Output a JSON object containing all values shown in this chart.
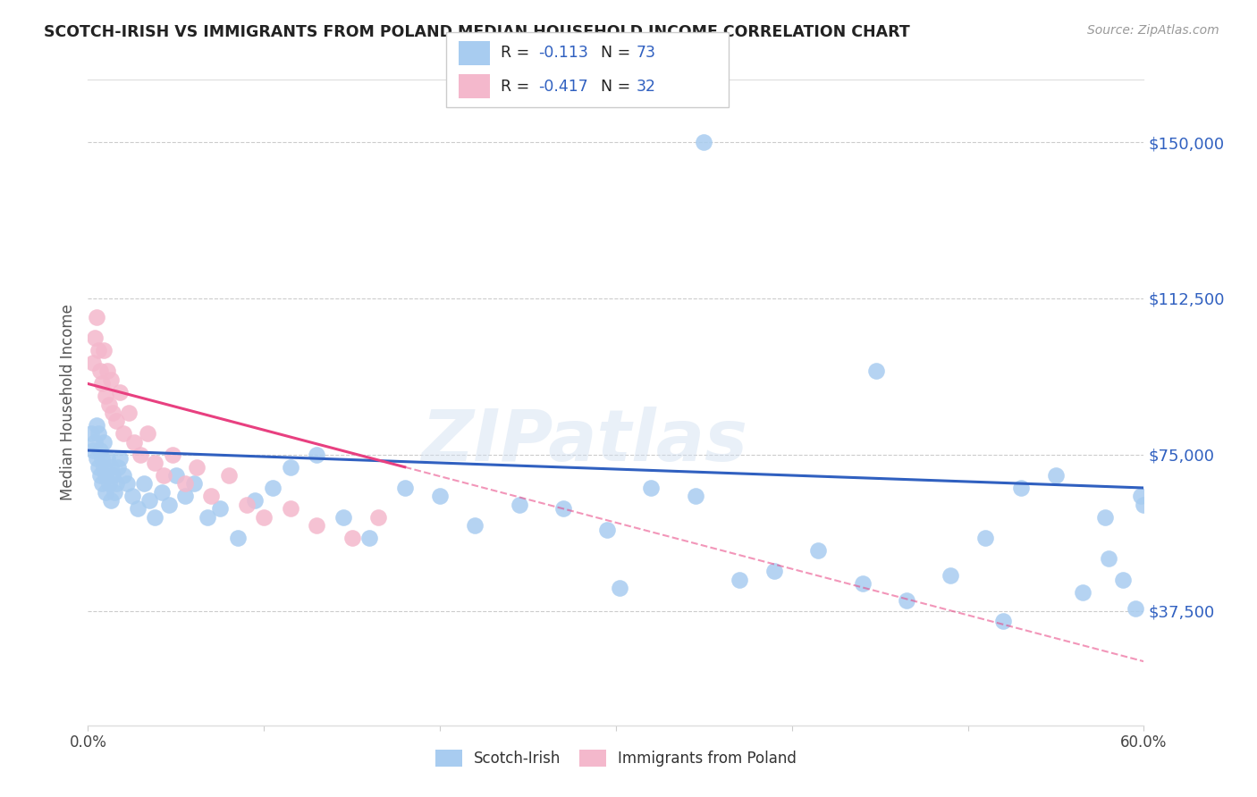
{
  "title": "SCOTCH-IRISH VS IMMIGRANTS FROM POLAND MEDIAN HOUSEHOLD INCOME CORRELATION CHART",
  "source": "Source: ZipAtlas.com",
  "ylabel": "Median Household Income",
  "yticks": [
    37500,
    75000,
    112500,
    150000
  ],
  "ytick_labels": [
    "$37,500",
    "$75,000",
    "$112,500",
    "$150,000"
  ],
  "xmin": 0.0,
  "xmax": 0.6,
  "ymin": 10000,
  "ymax": 165000,
  "color_blue": "#A8CCF0",
  "color_pink": "#F4B8CC",
  "trendline_blue": "#3060C0",
  "trendline_pink": "#E84080",
  "watermark": "ZIPatlas",
  "si_x": [
    0.002,
    0.003,
    0.004,
    0.005,
    0.005,
    0.006,
    0.006,
    0.007,
    0.007,
    0.008,
    0.008,
    0.009,
    0.009,
    0.01,
    0.01,
    0.011,
    0.012,
    0.013,
    0.013,
    0.014,
    0.015,
    0.016,
    0.017,
    0.018,
    0.02,
    0.022,
    0.025,
    0.028,
    0.032,
    0.035,
    0.038,
    0.042,
    0.046,
    0.05,
    0.055,
    0.06,
    0.068,
    0.075,
    0.085,
    0.095,
    0.105,
    0.115,
    0.13,
    0.145,
    0.16,
    0.18,
    0.2,
    0.22,
    0.245,
    0.27,
    0.295,
    0.32,
    0.345,
    0.37,
    0.39,
    0.415,
    0.44,
    0.465,
    0.49,
    0.51,
    0.53,
    0.55,
    0.565,
    0.578,
    0.588,
    0.595,
    0.598,
    0.6,
    0.35,
    0.302,
    0.448,
    0.52,
    0.58
  ],
  "si_y": [
    80000,
    76000,
    78000,
    74000,
    82000,
    72000,
    80000,
    70000,
    76000,
    68000,
    74000,
    72000,
    78000,
    66000,
    70000,
    74000,
    68000,
    72000,
    64000,
    70000,
    66000,
    68000,
    72000,
    74000,
    70000,
    68000,
    65000,
    62000,
    68000,
    64000,
    60000,
    66000,
    63000,
    70000,
    65000,
    68000,
    60000,
    62000,
    55000,
    64000,
    67000,
    72000,
    75000,
    60000,
    55000,
    67000,
    65000,
    58000,
    63000,
    62000,
    57000,
    67000,
    65000,
    45000,
    47000,
    52000,
    44000,
    40000,
    46000,
    55000,
    67000,
    70000,
    42000,
    60000,
    45000,
    38000,
    65000,
    63000,
    150000,
    43000,
    95000,
    35000,
    50000
  ],
  "po_x": [
    0.003,
    0.004,
    0.005,
    0.006,
    0.007,
    0.008,
    0.009,
    0.01,
    0.011,
    0.012,
    0.013,
    0.014,
    0.016,
    0.018,
    0.02,
    0.023,
    0.026,
    0.03,
    0.034,
    0.038,
    0.043,
    0.048,
    0.055,
    0.062,
    0.07,
    0.08,
    0.09,
    0.1,
    0.115,
    0.13,
    0.15,
    0.165
  ],
  "po_y": [
    97000,
    103000,
    108000,
    100000,
    95000,
    92000,
    100000,
    89000,
    95000,
    87000,
    93000,
    85000,
    83000,
    90000,
    80000,
    85000,
    78000,
    75000,
    80000,
    73000,
    70000,
    75000,
    68000,
    72000,
    65000,
    70000,
    63000,
    60000,
    62000,
    58000,
    55000,
    60000
  ]
}
